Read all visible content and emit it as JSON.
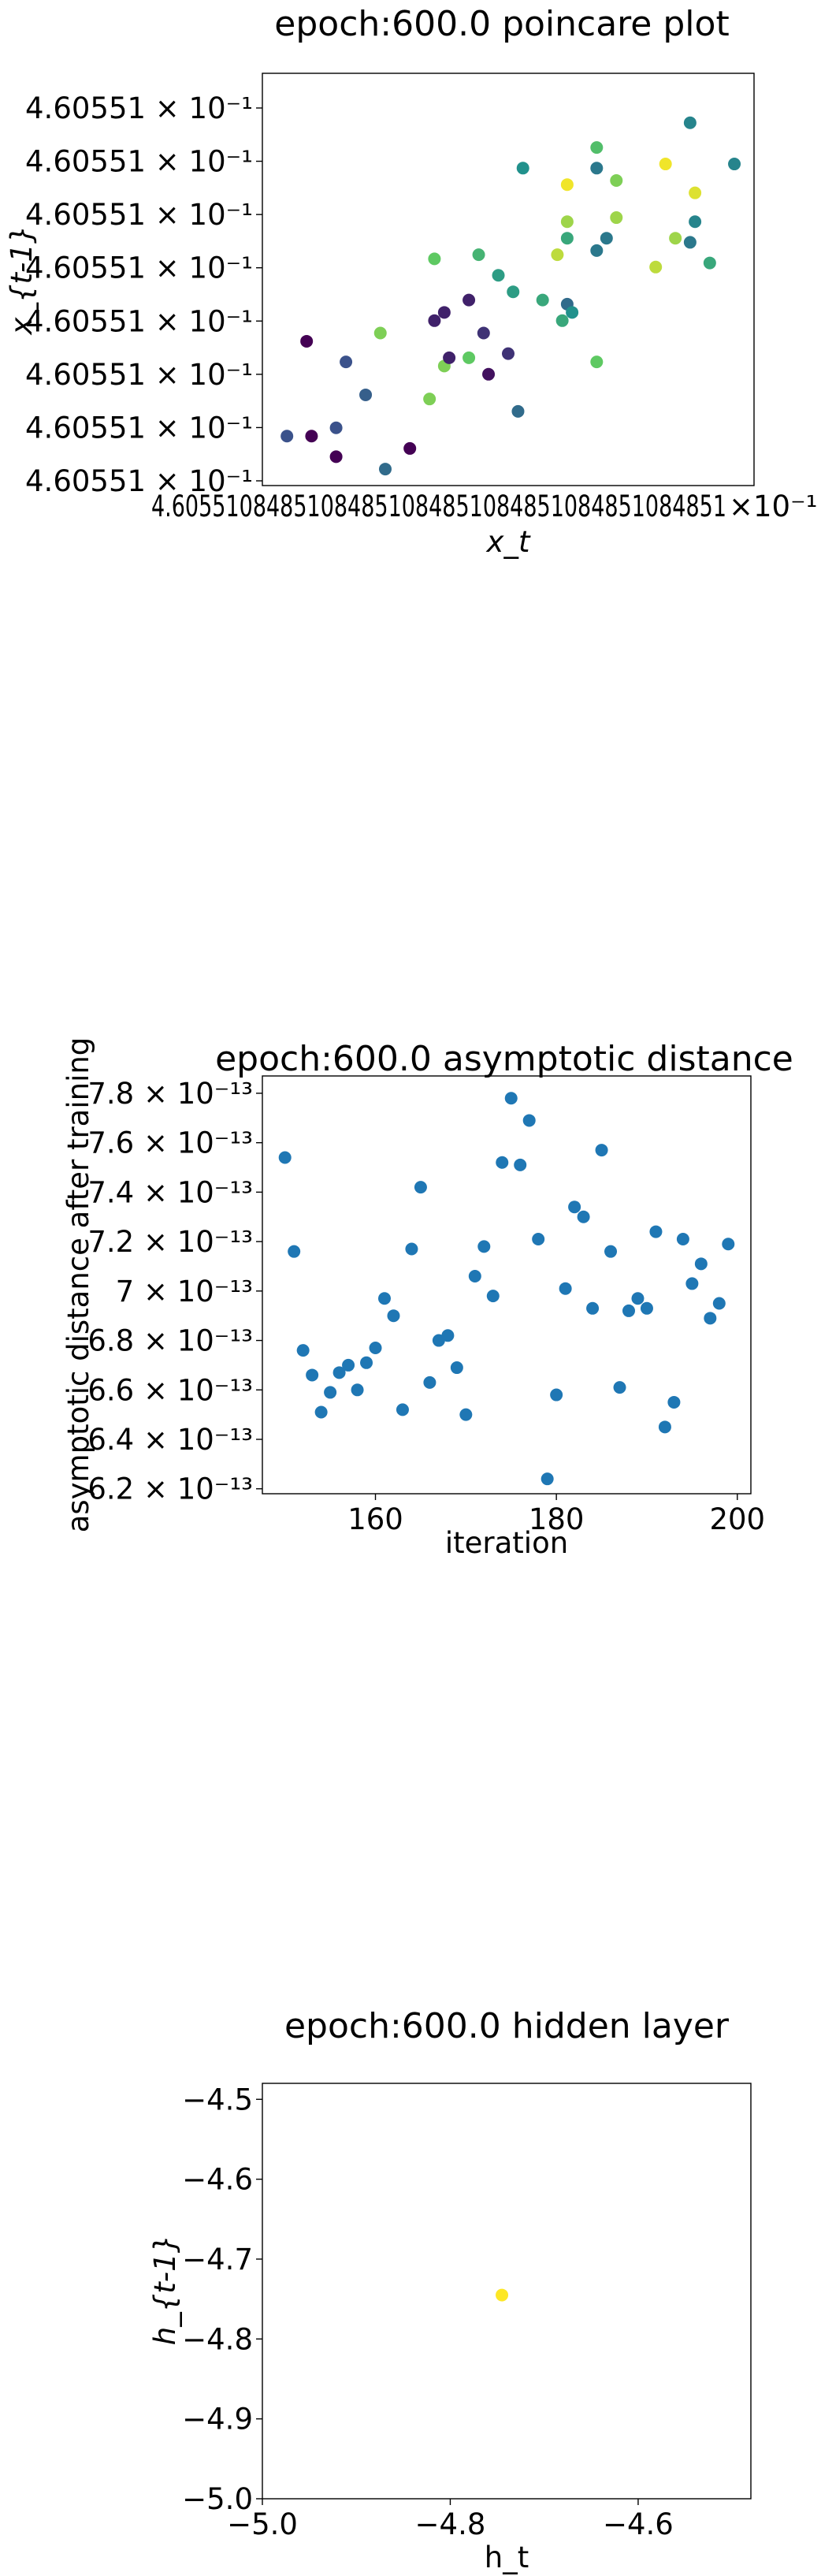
{
  "chart_data": [
    {
      "type": "scatter",
      "title": "epoch:600.0 poincare plot",
      "xlabel": "x_t",
      "ylabel": "x_{t-1}",
      "x_tick_labels": [
        "4.60551084851084851084851084851084851084851",
        "×10⁻¹"
      ],
      "y_tick_labels": [
        "4.60551 × 10⁻¹",
        "4.60551 × 10⁻¹",
        "4.60551 × 10⁻¹",
        "4.60551 × 10⁻¹",
        "4.60551 × 10⁻¹",
        "4.60551 × 10⁻¹",
        "4.60551 × 10⁻¹",
        "4.60551 × 10⁻¹"
      ],
      "xlim": [
        0,
        100
      ],
      "ylim": [
        0,
        100
      ],
      "colormap": "viridis",
      "colors": [
        "#440154",
        "#3b528b",
        "#21918c",
        "#5ec962",
        "#fde725"
      ],
      "points": [
        {
          "x": 5,
          "y": 12,
          "c": 0.25
        },
        {
          "x": 10,
          "y": 12,
          "c": 0.0
        },
        {
          "x": 9,
          "y": 35,
          "c": 0.0
        },
        {
          "x": 15,
          "y": 14,
          "c": 0.25
        },
        {
          "x": 15,
          "y": 7,
          "c": 0.0
        },
        {
          "x": 17,
          "y": 30,
          "c": 0.25
        },
        {
          "x": 21,
          "y": 22,
          "c": 0.3
        },
        {
          "x": 25,
          "y": 4,
          "c": 0.35
        },
        {
          "x": 24,
          "y": 37,
          "c": 0.8
        },
        {
          "x": 30,
          "y": 9,
          "c": 0.0
        },
        {
          "x": 34,
          "y": 21,
          "c": 0.8
        },
        {
          "x": 35,
          "y": 55,
          "c": 0.75
        },
        {
          "x": 35,
          "y": 40,
          "c": 0.1
        },
        {
          "x": 37,
          "y": 42,
          "c": 0.1
        },
        {
          "x": 37,
          "y": 29,
          "c": 0.8
        },
        {
          "x": 38,
          "y": 31,
          "c": 0.1
        },
        {
          "x": 42,
          "y": 45,
          "c": 0.1
        },
        {
          "x": 42,
          "y": 31,
          "c": 0.75
        },
        {
          "x": 44,
          "y": 56,
          "c": 0.65
        },
        {
          "x": 45,
          "y": 37,
          "c": 0.15
        },
        {
          "x": 46,
          "y": 27,
          "c": 0.05
        },
        {
          "x": 48,
          "y": 51,
          "c": 0.55
        },
        {
          "x": 50,
          "y": 32,
          "c": 0.15
        },
        {
          "x": 51,
          "y": 47,
          "c": 0.55
        },
        {
          "x": 52,
          "y": 18,
          "c": 0.35
        },
        {
          "x": 53,
          "y": 77,
          "c": 0.5
        },
        {
          "x": 57,
          "y": 45,
          "c": 0.6
        },
        {
          "x": 60,
          "y": 56,
          "c": 0.9
        },
        {
          "x": 61,
          "y": 40,
          "c": 0.6
        },
        {
          "x": 62,
          "y": 44,
          "c": 0.35
        },
        {
          "x": 62,
          "y": 73,
          "c": 0.98
        },
        {
          "x": 62,
          "y": 64,
          "c": 0.85
        },
        {
          "x": 62,
          "y": 60,
          "c": 0.6
        },
        {
          "x": 63,
          "y": 42,
          "c": 0.5
        },
        {
          "x": 68,
          "y": 57,
          "c": 0.4
        },
        {
          "x": 68,
          "y": 82,
          "c": 0.7
        },
        {
          "x": 68,
          "y": 77,
          "c": 0.4
        },
        {
          "x": 68,
          "y": 30,
          "c": 0.75
        },
        {
          "x": 70,
          "y": 60,
          "c": 0.4
        },
        {
          "x": 72,
          "y": 74,
          "c": 0.8
        },
        {
          "x": 72,
          "y": 65,
          "c": 0.85
        },
        {
          "x": 80,
          "y": 53,
          "c": 0.9
        },
        {
          "x": 82,
          "y": 78,
          "c": 0.98
        },
        {
          "x": 84,
          "y": 60,
          "c": 0.85
        },
        {
          "x": 87,
          "y": 88,
          "c": 0.45
        },
        {
          "x": 87,
          "y": 59,
          "c": 0.4
        },
        {
          "x": 88,
          "y": 64,
          "c": 0.45
        },
        {
          "x": 88,
          "y": 71,
          "c": 0.95
        },
        {
          "x": 91,
          "y": 54,
          "c": 0.6
        },
        {
          "x": 96,
          "y": 78,
          "c": 0.45
        }
      ]
    },
    {
      "type": "scatter",
      "title": "epoch:600.0 asymptotic distance",
      "xlabel": "iteration",
      "ylabel": "asymptotic distance after training",
      "xlim": [
        147.5,
        201.5
      ],
      "ylim": [
        6.18,
        7.87
      ],
      "y_exponent": -13,
      "xticks": [
        160,
        180,
        200
      ],
      "yticks": [
        6.2,
        6.4,
        6.6,
        6.8,
        7.0,
        7.2,
        7.4,
        7.6,
        7.8
      ],
      "ytick_labels": [
        "6.2 × 10⁻¹³",
        "6.4 × 10⁻¹³",
        "6.6 × 10⁻¹³",
        "6.8 × 10⁻¹³",
        "7 × 10⁻¹³",
        "7.2 × 10⁻¹³",
        "7.4 × 10⁻¹³",
        "7.6 × 10⁻¹³",
        "7.8 × 10⁻¹³"
      ],
      "color": "#1f77b4",
      "points": [
        {
          "x": 150,
          "y": 7.54
        },
        {
          "x": 151,
          "y": 7.16
        },
        {
          "x": 152,
          "y": 6.76
        },
        {
          "x": 153,
          "y": 6.66
        },
        {
          "x": 154,
          "y": 6.51
        },
        {
          "x": 155,
          "y": 6.59
        },
        {
          "x": 156,
          "y": 6.67
        },
        {
          "x": 157,
          "y": 6.7
        },
        {
          "x": 158,
          "y": 6.6
        },
        {
          "x": 159,
          "y": 6.71
        },
        {
          "x": 160,
          "y": 6.77
        },
        {
          "x": 161,
          "y": 6.97
        },
        {
          "x": 162,
          "y": 6.9
        },
        {
          "x": 163,
          "y": 6.52
        },
        {
          "x": 164,
          "y": 7.17
        },
        {
          "x": 165,
          "y": 7.42
        },
        {
          "x": 166,
          "y": 6.63
        },
        {
          "x": 167,
          "y": 6.8
        },
        {
          "x": 168,
          "y": 6.82
        },
        {
          "x": 169,
          "y": 6.69
        },
        {
          "x": 170,
          "y": 6.5
        },
        {
          "x": 171,
          "y": 7.06
        },
        {
          "x": 172,
          "y": 7.18
        },
        {
          "x": 173,
          "y": 6.98
        },
        {
          "x": 174,
          "y": 7.52
        },
        {
          "x": 175,
          "y": 7.78
        },
        {
          "x": 176,
          "y": 7.51
        },
        {
          "x": 177,
          "y": 7.69
        },
        {
          "x": 178,
          "y": 7.21
        },
        {
          "x": 179,
          "y": 6.24
        },
        {
          "x": 180,
          "y": 6.58
        },
        {
          "x": 181,
          "y": 7.01
        },
        {
          "x": 182,
          "y": 7.34
        },
        {
          "x": 183,
          "y": 7.3
        },
        {
          "x": 184,
          "y": 6.93
        },
        {
          "x": 185,
          "y": 7.57
        },
        {
          "x": 186,
          "y": 7.16
        },
        {
          "x": 187,
          "y": 6.61
        },
        {
          "x": 188,
          "y": 6.92
        },
        {
          "x": 189,
          "y": 6.97
        },
        {
          "x": 190,
          "y": 6.93
        },
        {
          "x": 191,
          "y": 7.24
        },
        {
          "x": 192,
          "y": 6.45
        },
        {
          "x": 193,
          "y": 6.55
        },
        {
          "x": 194,
          "y": 7.21
        },
        {
          "x": 195,
          "y": 7.03
        },
        {
          "x": 196,
          "y": 7.11
        },
        {
          "x": 197,
          "y": 6.89
        },
        {
          "x": 198,
          "y": 6.95
        },
        {
          "x": 199,
          "y": 7.19
        }
      ]
    },
    {
      "type": "scatter",
      "title": "epoch:600.0 hidden layer",
      "xlabel": "h_t",
      "ylabel": "h_{t-1}",
      "xlim": [
        -5.0,
        -4.48
      ],
      "ylim": [
        -5.0,
        -4.48
      ],
      "xticks": [
        -5.0,
        -4.8,
        -4.6
      ],
      "yticks": [
        -5.0,
        -4.9,
        -4.8,
        -4.7,
        -4.6,
        -4.5
      ],
      "xtick_labels": [
        "−5.0",
        "−4.8",
        "−4.6"
      ],
      "ytick_labels": [
        "−5.0",
        "−4.9",
        "−4.8",
        "−4.7",
        "−4.6",
        "−4.5"
      ],
      "color": "#fde725",
      "points": [
        {
          "x": -4.745,
          "y": -4.745
        }
      ]
    }
  ]
}
